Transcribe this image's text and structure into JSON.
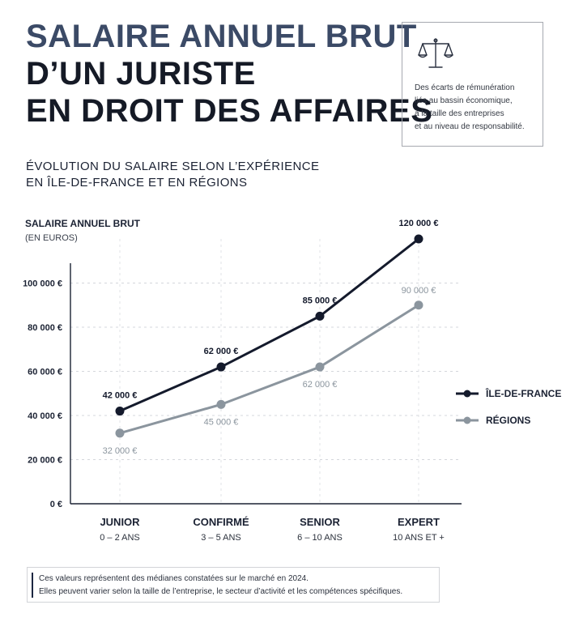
{
  "header": {
    "title_line1": "SALAIRE ANNUEL BRUT",
    "title_line2": "D’UN JURISTE",
    "title_line3": "EN DROIT DES AFFAIRES"
  },
  "info_box": {
    "icon": "scales-of-justice-icon",
    "lines": [
      "Des écarts de rémunération",
      "liés au bassin économique,",
      "à la taille des entreprises",
      "et au niveau de responsabilité."
    ]
  },
  "subtitle": {
    "line1": "ÉVOLUTION DU SALAIRE SELON L’EXPÉRIENCE",
    "line2": "EN ÎLE-DE-FRANCE ET EN RÉGIONS"
  },
  "colors": {
    "ile_de_france": "#141a2c",
    "regions": "#8b959e",
    "title_accent": "#3b4a66"
  },
  "chart_data": {
    "type": "line",
    "ylabel": "SALAIRE ANNUEL BRUT",
    "ylabel_unit": "(EN EUROS)",
    "categories": [
      "JUNIOR",
      "CONFIRMÉ",
      "SENIOR",
      "EXPERT"
    ],
    "category_sublabels": [
      "0 – 2 ANS",
      "3 – 5 ANS",
      "6 – 10 ANS",
      "10 ANS ET +"
    ],
    "y_ticks": [
      0,
      20000,
      40000,
      60000,
      80000,
      100000
    ],
    "y_tick_labels": [
      "0 €",
      "20 000 €",
      "40 000 €",
      "60 000 €",
      "80 000 €",
      "100 000 €"
    ],
    "ylim": [
      0,
      120000
    ],
    "grid": true,
    "legend_position": "right",
    "series": [
      {
        "name": "ÎLE-DE-FRANCE",
        "values": [
          42000,
          62000,
          85000,
          120000
        ],
        "value_labels": [
          "42 000 €",
          "62 000 €",
          "85 000 €",
          "120 000 €"
        ]
      },
      {
        "name": "RÉGIONS",
        "values": [
          32000,
          45000,
          62000,
          90000
        ],
        "value_labels": [
          "32 000 €",
          "45 000 €",
          "62 000 €",
          "90 000 €"
        ]
      }
    ]
  },
  "footnote": {
    "line1": "Ces valeurs représentent des médianes constatées sur le marché en 2024.",
    "line2": "Elles peuvent varier selon la taille de l’entreprise, le secteur d’activité et les compétences spécifiques."
  }
}
